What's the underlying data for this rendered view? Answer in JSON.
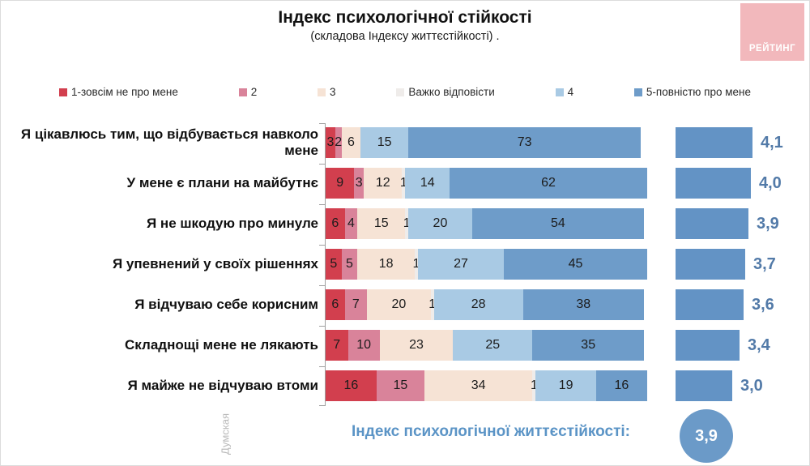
{
  "header": {
    "title": "Індекс психологічної стійкості",
    "subtitle": "(складова Індексу життєстійкості) ."
  },
  "logo": {
    "text": "РЕЙТИНГ",
    "bg": "#f2b8bc"
  },
  "watermark": "Думская",
  "colors": {
    "avg_bar": "#6393c5",
    "avg_text": "#527aa8",
    "footer_text": "#5b94c6",
    "footer_circle": "#6b9ac8"
  },
  "chart_data": {
    "type": "bar",
    "stacked": true,
    "orientation": "horizontal",
    "xlim": [
      0,
      100
    ],
    "title": "Індекс психологічної стійкості",
    "categories": [
      "Я цікавлюсь тим, що відбувається навколо мене",
      "У мене є плани на майбутнє",
      "Я не шкодую про минуле",
      "Я упевнений у своїх рішеннях",
      "Я відчуваю себе корисним",
      "Складнощі мене не лякають",
      "Я майже не відчуваю втоми"
    ],
    "series": [
      {
        "name": "1-зовсім не про мене",
        "color": "#d23f4e",
        "values": [
          3,
          9,
          6,
          5,
          6,
          7,
          16
        ]
      },
      {
        "name": "2",
        "color": "#d9839a",
        "values": [
          2,
          3,
          4,
          5,
          7,
          10,
          15
        ]
      },
      {
        "name": "3",
        "color": "#f6e3d5",
        "values": [
          6,
          12,
          15,
          18,
          20,
          23,
          34
        ]
      },
      {
        "name": "Важко відповісти",
        "color": "#efecea",
        "values": [
          0,
          1,
          1,
          1,
          1,
          0,
          1
        ]
      },
      {
        "name": "4",
        "color": "#a9cae4",
        "values": [
          15,
          14,
          20,
          27,
          28,
          25,
          19
        ]
      },
      {
        "name": "5-повністю про мене",
        "color": "#6e9cc9",
        "values": [
          73,
          62,
          54,
          45,
          38,
          35,
          16
        ]
      }
    ],
    "averages": [
      4.1,
      4.0,
      3.9,
      3.7,
      3.6,
      3.4,
      3.0
    ],
    "averages_display": [
      "4,1",
      "4,0",
      "3,9",
      "3,7",
      "3,6",
      "3,4",
      "3,0"
    ],
    "legend_position": "top"
  },
  "footer": {
    "label": "Індекс психологічної життєстійкості:",
    "value": "3,9"
  }
}
